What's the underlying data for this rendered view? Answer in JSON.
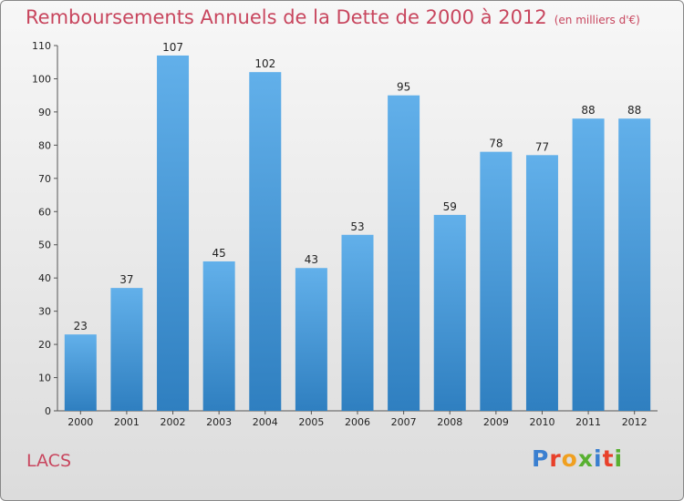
{
  "title": "Remboursements Annuels de la Dette de 2000 à 2012",
  "subtitle": "(en milliers d'€)",
  "place": "LACS",
  "logo": {
    "text": "Proxiti",
    "letter_colors": [
      "#3a7fd0",
      "#e8402a",
      "#f0a020",
      "#58b030",
      "#3a7fd0",
      "#e8402a",
      "#58b030"
    ]
  },
  "colors": {
    "bar": "#4a9de0",
    "bar_light": "#62b0ea",
    "title": "#c8465e",
    "axis_text": "#222222"
  },
  "chart_data": {
    "type": "bar",
    "title": "Remboursements Annuels de la Dette de 2000 à 2012",
    "xlabel": "",
    "ylabel": "",
    "categories": [
      "2000",
      "2001",
      "2002",
      "2003",
      "2004",
      "2005",
      "2006",
      "2007",
      "2008",
      "2009",
      "2010",
      "2011",
      "2012"
    ],
    "values": [
      23,
      37,
      107,
      45,
      102,
      43,
      53,
      95,
      59,
      78,
      77,
      88,
      88
    ],
    "data_labels": [
      "23",
      "37",
      "107",
      "45",
      "102",
      "43",
      "53",
      "95",
      "59",
      "78",
      "77",
      "88",
      "88"
    ],
    "ylim": [
      0,
      110
    ],
    "yticks": [
      0,
      10,
      20,
      30,
      40,
      50,
      60,
      70,
      80,
      90,
      100,
      110
    ],
    "grid": false,
    "legend": "none"
  }
}
